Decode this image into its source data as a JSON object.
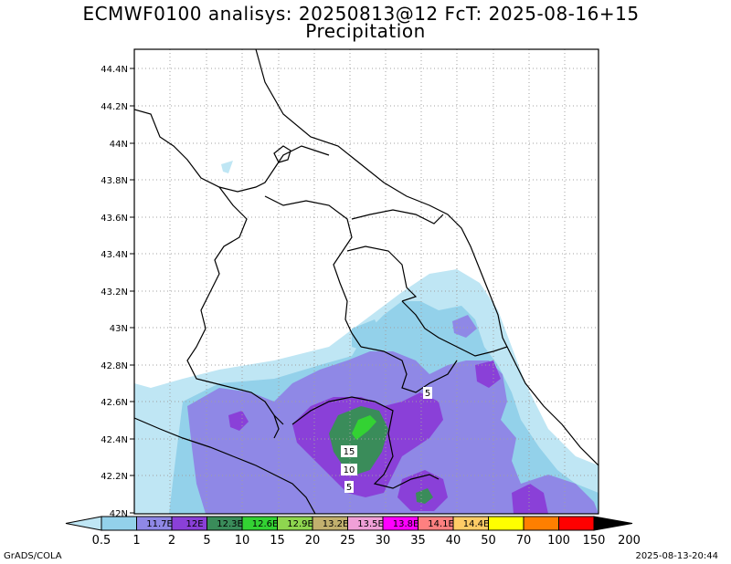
{
  "title": "ECMWF0100 analisys: 20250813@12 FcT: 2025-08-16+15",
  "subtitle": "Precipitation",
  "lat_labels": [
    "44.4N",
    "44.2N",
    "44N",
    "43.8N",
    "43.6N",
    "43.4N",
    "43.2N",
    "43N",
    "42.8N",
    "42.6N",
    "42.4N",
    "42.2N",
    "42N"
  ],
  "lon_labels_in_bar": [
    "11.7E",
    "12E",
    "12.3E",
    "12.6E",
    "12.9E",
    "13.2E",
    "13.5E",
    "13.8E",
    "14.1E",
    "14.4E"
  ],
  "colorbar": {
    "levels": [
      "0.5",
      "1",
      "2",
      "5",
      "10",
      "15",
      "20",
      "25",
      "30",
      "35",
      "40",
      "50",
      "70",
      "100",
      "150",
      "200"
    ],
    "colors": [
      "#bfe6f4",
      "#93d1ea",
      "#8f88e6",
      "#8a40d8",
      "#3a8c5a",
      "#33d233",
      "#8ed64f",
      "#c2b06e",
      "#f0a0d8",
      "#ff00ff",
      "#ff8080",
      "#ffcc66",
      "#ffff00",
      "#ff7f00",
      "#ff0000",
      "#8b0000"
    ]
  },
  "contour_labels": [
    "5",
    "15",
    "10",
    "5"
  ],
  "footer_left": "GrADS/COLA",
  "footer_right": "2025-08-13-20:44"
}
